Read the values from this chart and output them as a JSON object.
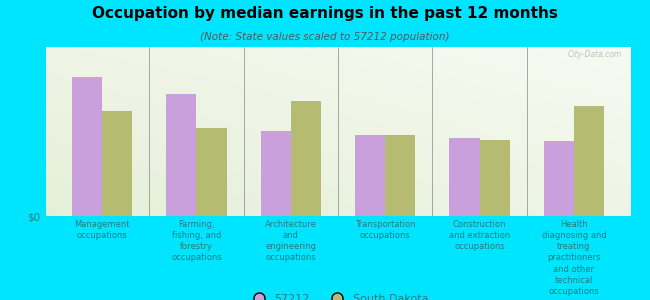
{
  "title": "Occupation by median earnings in the past 12 months",
  "subtitle": "(Note: State values scaled to 57212 population)",
  "categories": [
    "Management\noccupations",
    "Farming,\nfishing, and\nforestry\noccupations",
    "Architecture\nand\nengineering\noccupations",
    "Transportation\noccupations",
    "Construction\nand extraction\noccupations",
    "Health\ndiagnosing and\ntreating\npractitioners\nand other\ntechnical\noccupations"
  ],
  "values_57212": [
    0.82,
    0.72,
    0.5,
    0.48,
    0.46,
    0.44
  ],
  "values_sd": [
    0.62,
    0.52,
    0.68,
    0.48,
    0.45,
    0.65
  ],
  "color_57212": "#c9a0dc",
  "color_sd": "#b5bc72",
  "background_outer": "#00e5ff",
  "ylabel": "$0",
  "legend_57212": "57212",
  "legend_sd": "South Dakota",
  "bar_width": 0.32,
  "ylim": [
    0,
    1.0
  ]
}
